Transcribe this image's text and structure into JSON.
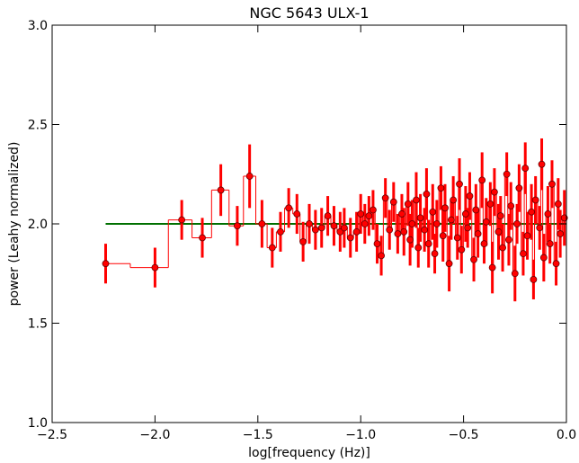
{
  "chart_data": {
    "type": "errorbar-step",
    "title": "NGC 5643 ULX-1",
    "x_label": "log[frequency (Hz)]",
    "y_label": "power (Leahy normalized)",
    "xlim": [
      -2.5,
      0.0
    ],
    "ylim": [
      1.0,
      3.0
    ],
    "xticks": [
      {
        "value": -2.5,
        "label": "−2.5"
      },
      {
        "value": -2.0,
        "label": "−2.0"
      },
      {
        "value": -1.5,
        "label": "−1.5"
      },
      {
        "value": -1.0,
        "label": "−1.0"
      },
      {
        "value": -0.5,
        "label": "−0.5"
      },
      {
        "value": 0.0,
        "label": "0.0"
      }
    ],
    "yticks": [
      {
        "value": 1.0,
        "label": "1.0"
      },
      1.5,
      {
        "value": 2.0,
        "label": "2.0"
      },
      2.5,
      {
        "value": 3.0,
        "label": "3.0"
      }
    ],
    "color": "#ff0000",
    "series": [
      {
        "color": "#ff0000",
        "x": [
          -2.24,
          -2.0,
          -1.87,
          -1.77,
          -1.68,
          -1.6,
          -1.54,
          -1.48,
          -1.43,
          -1.39,
          -1.35,
          -1.31,
          -1.28,
          -1.25,
          -1.22,
          -1.19,
          -1.16,
          -1.13,
          -1.1,
          -1.08,
          -1.05,
          -1.02,
          -1.0,
          -0.98,
          -0.96,
          -0.94,
          -0.92,
          -0.9,
          -0.88,
          -0.86,
          -0.84,
          -0.82,
          -0.8,
          -0.79,
          -0.77,
          -0.76,
          -0.75,
          -0.73,
          -0.72,
          -0.71,
          -0.69,
          -0.68,
          -0.67,
          -0.65,
          -0.64,
          -0.63,
          -0.61,
          -0.6,
          -0.59,
          -0.57,
          -0.56,
          -0.55,
          -0.53,
          -0.52,
          -0.51,
          -0.49,
          -0.48,
          -0.47,
          -0.45,
          -0.44,
          -0.43,
          -0.41,
          -0.4,
          -0.39,
          -0.37,
          -0.36,
          -0.35,
          -0.33,
          -0.32,
          -0.31,
          -0.29,
          -0.28,
          -0.27,
          -0.25,
          -0.24,
          -0.23,
          -0.21,
          -0.2,
          -0.19,
          -0.17,
          -0.16,
          -0.15,
          -0.13,
          -0.12,
          -0.11,
          -0.09,
          -0.08,
          -0.07,
          -0.05,
          -0.04,
          -0.03,
          -0.01
        ],
        "values": [
          1.8,
          1.78,
          2.02,
          1.93,
          2.17,
          1.99,
          2.24,
          2.0,
          1.88,
          1.96,
          2.08,
          2.05,
          1.91,
          2.0,
          1.97,
          1.98,
          2.04,
          1.99,
          1.96,
          1.98,
          1.93,
          1.96,
          2.05,
          2.0,
          2.04,
          2.07,
          1.9,
          1.84,
          2.13,
          1.97,
          2.11,
          1.95,
          2.05,
          1.96,
          2.1,
          1.92,
          2.0,
          2.12,
          1.88,
          2.03,
          1.97,
          2.15,
          1.9,
          2.06,
          1.85,
          2.0,
          2.18,
          1.94,
          2.08,
          1.8,
          2.02,
          2.12,
          1.93,
          2.2,
          1.87,
          2.05,
          1.98,
          2.14,
          1.82,
          2.07,
          1.95,
          2.22,
          1.9,
          2.01,
          2.1,
          1.78,
          2.16,
          1.96,
          2.04,
          1.88,
          2.25,
          1.92,
          2.09,
          1.75,
          2.0,
          2.18,
          1.85,
          2.28,
          1.94,
          2.06,
          1.72,
          2.12,
          1.98,
          2.3,
          1.83,
          2.05,
          1.9,
          2.2,
          1.8,
          2.1,
          1.95,
          2.03
        ],
        "errors": [
          0.1,
          0.1,
          0.1,
          0.1,
          0.13,
          0.1,
          0.16,
          0.12,
          0.1,
          0.1,
          0.1,
          0.1,
          0.1,
          0.1,
          0.1,
          0.1,
          0.1,
          0.1,
          0.1,
          0.1,
          0.1,
          0.1,
          0.1,
          0.1,
          0.1,
          0.1,
          0.1,
          0.1,
          0.1,
          0.1,
          0.1,
          0.1,
          0.1,
          0.12,
          0.11,
          0.13,
          0.12,
          0.14,
          0.1,
          0.12,
          0.11,
          0.13,
          0.12,
          0.14,
          0.1,
          0.12,
          0.11,
          0.13,
          0.12,
          0.14,
          0.1,
          0.12,
          0.11,
          0.13,
          0.12,
          0.14,
          0.1,
          0.12,
          0.11,
          0.13,
          0.12,
          0.14,
          0.1,
          0.12,
          0.11,
          0.13,
          0.12,
          0.14,
          0.1,
          0.12,
          0.11,
          0.13,
          0.12,
          0.14,
          0.1,
          0.12,
          0.11,
          0.13,
          0.12,
          0.14,
          0.1,
          0.12,
          0.11,
          0.13,
          0.12,
          0.14,
          0.1,
          0.12,
          0.11,
          0.13,
          0.12,
          0.14
        ]
      }
    ],
    "lines": [
      {
        "color": "#007000",
        "x": [
          -2.24,
          0.0
        ],
        "values": [
          2.0,
          2.0
        ]
      }
    ]
  }
}
